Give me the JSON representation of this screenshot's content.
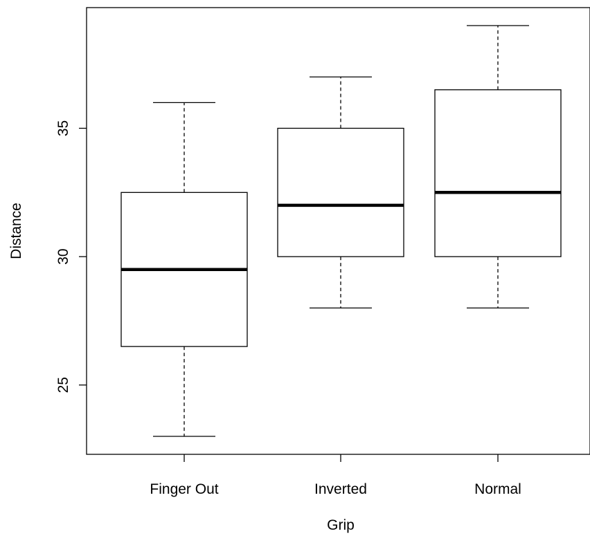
{
  "chart_data": {
    "type": "box",
    "xlabel": "Grip",
    "ylabel": "Distance",
    "ylim": [
      22.3,
      39.7
    ],
    "yticks": [
      25,
      30,
      35
    ],
    "categories": [
      "Finger Out",
      "Inverted",
      "Normal"
    ],
    "boxes": [
      {
        "category": "Finger Out",
        "min": 23,
        "q1": 26.5,
        "median": 29.5,
        "q3": 32.5,
        "max": 36
      },
      {
        "category": "Inverted",
        "min": 28,
        "q1": 30,
        "median": 32,
        "q3": 35,
        "max": 37
      },
      {
        "category": "Normal",
        "min": 28,
        "q1": 30,
        "median": 32.5,
        "q3": 36.5,
        "max": 39
      }
    ],
    "grid": false,
    "legend": "none"
  }
}
